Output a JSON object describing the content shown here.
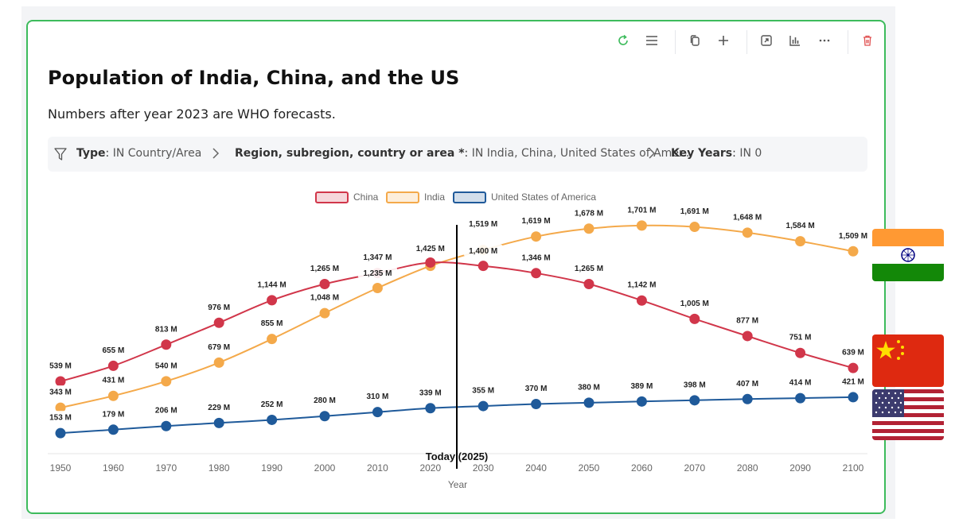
{
  "page": {
    "title": "Population of India, China, and the US",
    "subtitle": "Numbers after year 2023 are WHO forecasts."
  },
  "toolbar": {
    "icons": [
      "refresh-icon",
      "menu-icon",
      "copy-icon",
      "add-icon",
      "expand-icon",
      "chart-icon",
      "more-icon",
      "delete-icon"
    ]
  },
  "filters": [
    {
      "key": "Type",
      "sep": ": ",
      "value": "IN Country/Area"
    },
    {
      "key": "Region, subregion, country or area *",
      "sep": ": ",
      "value": "IN India, China, United States of Amer..."
    },
    {
      "key": "Key Years",
      "sep": ": ",
      "value": "IN 0"
    }
  ],
  "colors": {
    "china": "#d1364a",
    "india": "#f4a94a",
    "usa": "#1f5a9a",
    "accent": "#3dbb5c",
    "delete": "#e05050"
  },
  "chart_data": {
    "type": "line",
    "x": [
      1950,
      1960,
      1970,
      1980,
      1990,
      2000,
      2010,
      2020,
      2030,
      2040,
      2050,
      2060,
      2070,
      2080,
      2090,
      2100
    ],
    "xlabel": "Year",
    "ylabel": "",
    "ylim": [
      0,
      1800
    ],
    "legend_position": "top-center",
    "series": [
      {
        "name": "China",
        "color": "#d1364a",
        "values": [
          539,
          655,
          813,
          976,
          1144,
          1265,
          1347,
          1425,
          1400,
          1346,
          1265,
          1142,
          1005,
          877,
          751,
          639
        ],
        "labels": [
          "539 M",
          "655 M",
          "813 M",
          "976 M",
          "1,144 M",
          "1,265 M",
          "1,347 M",
          "1,425 M",
          "1,400 M",
          "1,346 M",
          "1,265 M",
          "1,142 M",
          "1,005 M",
          "877 M",
          "751 M",
          "639 M"
        ]
      },
      {
        "name": "India",
        "color": "#f4a94a",
        "values": [
          343,
          431,
          540,
          679,
          855,
          1048,
          1235,
          1400,
          1519,
          1619,
          1678,
          1701,
          1691,
          1648,
          1584,
          1509
        ],
        "labels": [
          "343 M",
          "431 M",
          "540 M",
          "679 M",
          "855 M",
          "1,048 M",
          "1,235 M",
          "",
          "1,519 M",
          "1,619 M",
          "1,678 M",
          "1,701 M",
          "1,691 M",
          "1,648 M",
          "1,584 M",
          "1,509 M"
        ]
      },
      {
        "name": "United States of America",
        "color": "#1f5a9a",
        "values": [
          153,
          179,
          206,
          229,
          252,
          280,
          310,
          339,
          355,
          370,
          380,
          389,
          398,
          407,
          414,
          421
        ],
        "labels": [
          "153 M",
          "179 M",
          "206 M",
          "229 M",
          "252 M",
          "280 M",
          "310 M",
          "339 M",
          "355 M",
          "370 M",
          "380 M",
          "389 M",
          "398 M",
          "407 M",
          "414 M",
          "421 M"
        ]
      }
    ],
    "annotations": [
      {
        "text": "Today (2025)",
        "x": 2025
      }
    ]
  },
  "flags": [
    {
      "name": "india-flag",
      "country": "India"
    },
    {
      "name": "china-flag",
      "country": "China"
    },
    {
      "name": "usa-flag",
      "country": "United States of America"
    }
  ]
}
